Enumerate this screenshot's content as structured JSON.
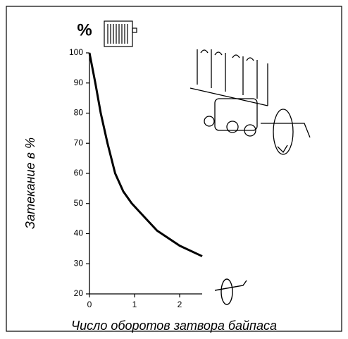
{
  "chart_data": {
    "type": "line",
    "y_label": "Затекание в %",
    "x_label": "Число оборотов затвора байпаса",
    "unit_label": "%",
    "x": [
      0,
      0.13,
      0.25,
      0.4,
      0.57,
      0.75,
      0.94,
      1.25,
      1.5,
      2,
      2.5
    ],
    "series": [
      {
        "color": "#000000",
        "values": [
          100,
          90,
          80,
          70,
          60,
          54,
          50,
          45,
          41,
          36,
          32.5
        ]
      }
    ],
    "xlim": [
      0,
      2.5
    ],
    "ylim": [
      20,
      100
    ],
    "xticks": [
      0,
      1,
      2
    ],
    "yticks": [
      20,
      30,
      40,
      50,
      60,
      70,
      80,
      90,
      100
    ]
  }
}
